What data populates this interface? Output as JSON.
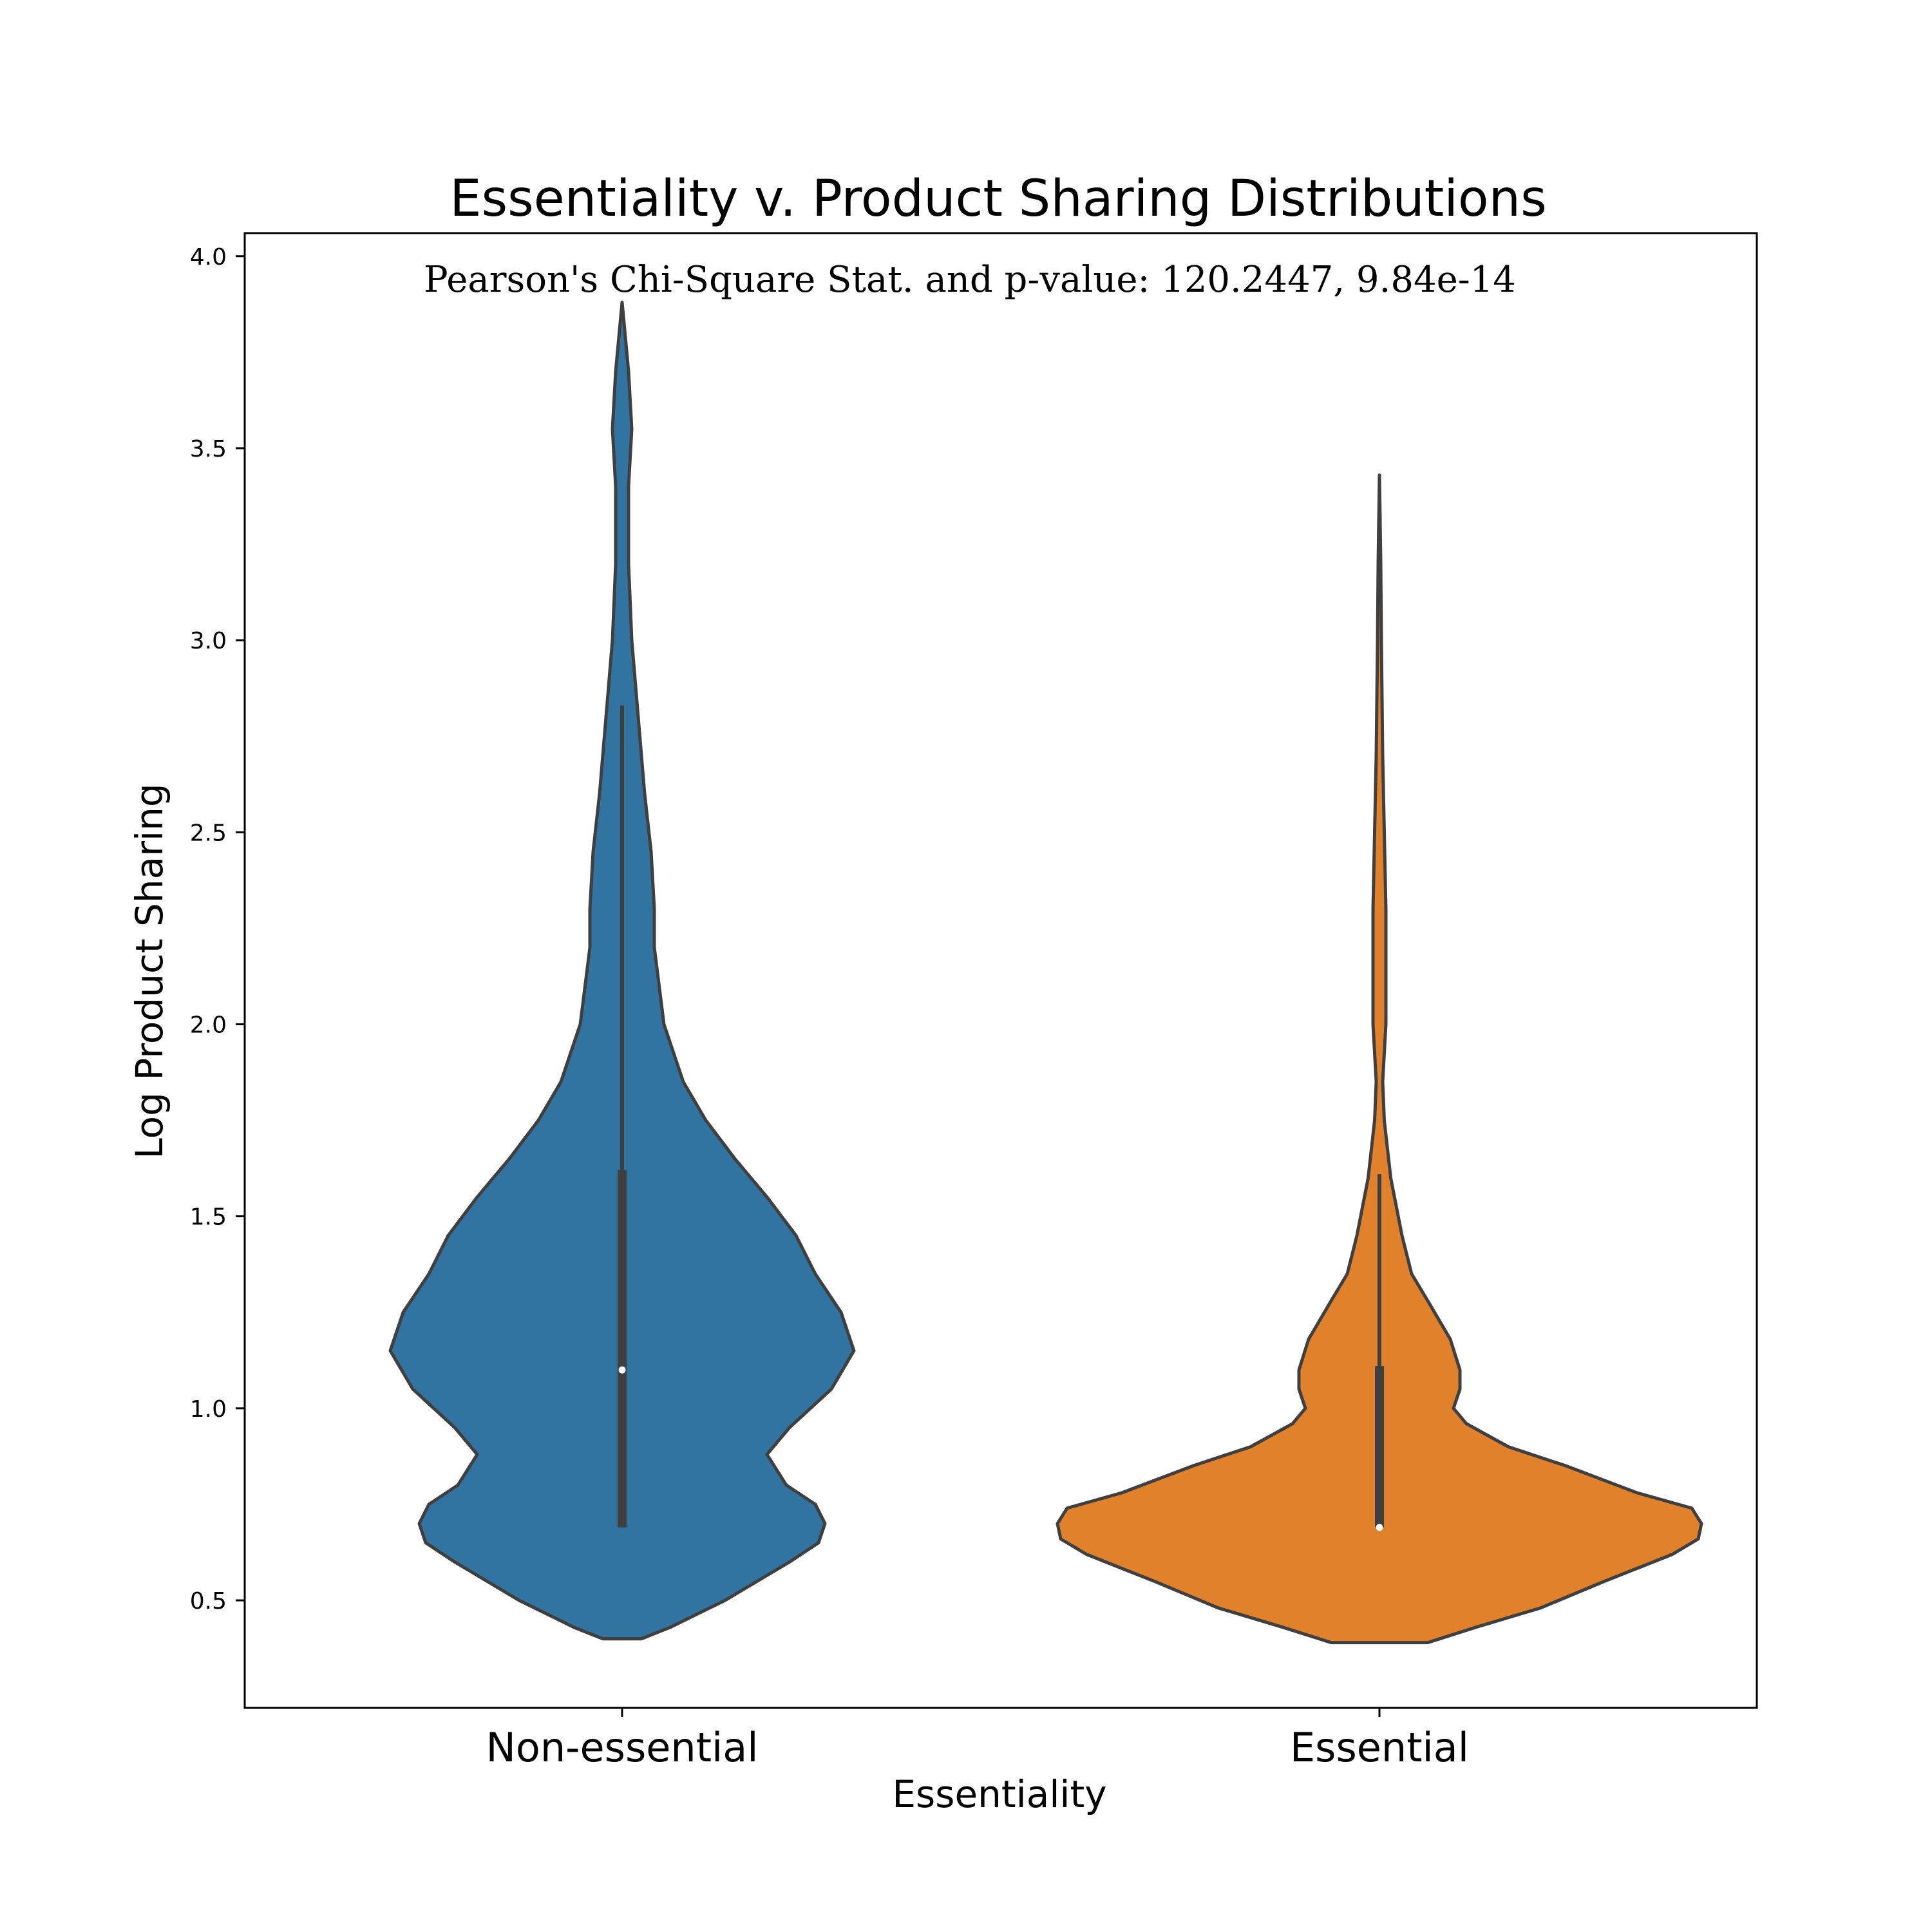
{
  "chart_data": {
    "type": "violin",
    "title": "Essentiality v. Product Sharing Distributions",
    "annotation": "Pearson's Chi-Square Stat. and p-value: 120.2447, 9.84e-14",
    "xlabel": "Essentiality",
    "ylabel": "Log Product Sharing",
    "ylim": [
      0.22,
      4.06
    ],
    "yticks": [
      "0.5",
      "1.0",
      "1.5",
      "2.0",
      "2.5",
      "3.0",
      "3.5",
      "4.0"
    ],
    "grid": false,
    "categories": [
      "Non-essential",
      "Essential"
    ],
    "series": [
      {
        "category": "Non-essential",
        "color": "#3274a1",
        "min": 0.4,
        "max": 3.88,
        "q1": 0.69,
        "median": 1.1,
        "q3": 1.62,
        "whisker_low": 0.69,
        "whisker_high": 2.83,
        "density": [
          [
            0.4,
            0.06
          ],
          [
            0.43,
            0.15
          ],
          [
            0.5,
            0.32
          ],
          [
            0.6,
            0.52
          ],
          [
            0.65,
            0.61
          ],
          [
            0.7,
            0.63
          ],
          [
            0.75,
            0.6
          ],
          [
            0.8,
            0.51
          ],
          [
            0.88,
            0.45
          ],
          [
            0.95,
            0.52
          ],
          [
            1.05,
            0.65
          ],
          [
            1.15,
            0.72
          ],
          [
            1.25,
            0.68
          ],
          [
            1.35,
            0.6
          ],
          [
            1.45,
            0.54
          ],
          [
            1.55,
            0.45
          ],
          [
            1.65,
            0.35
          ],
          [
            1.75,
            0.26
          ],
          [
            1.85,
            0.19
          ],
          [
            2.0,
            0.13
          ],
          [
            2.2,
            0.1
          ],
          [
            2.3,
            0.1
          ],
          [
            2.45,
            0.09
          ],
          [
            2.6,
            0.07
          ],
          [
            2.8,
            0.05
          ],
          [
            3.0,
            0.03
          ],
          [
            3.2,
            0.02
          ],
          [
            3.4,
            0.02
          ],
          [
            3.55,
            0.03
          ],
          [
            3.7,
            0.02
          ],
          [
            3.88,
            0.0
          ]
        ]
      },
      {
        "category": "Essential",
        "color": "#e1812c",
        "min": 0.39,
        "max": 3.43,
        "q1": 0.69,
        "median": 0.69,
        "q3": 1.11,
        "whisker_low": 0.69,
        "whisker_high": 1.61,
        "density": [
          [
            0.39,
            0.15
          ],
          [
            0.43,
            0.3
          ],
          [
            0.48,
            0.5
          ],
          [
            0.55,
            0.7
          ],
          [
            0.62,
            0.91
          ],
          [
            0.66,
            0.99
          ],
          [
            0.7,
            1.0
          ],
          [
            0.74,
            0.97
          ],
          [
            0.78,
            0.8
          ],
          [
            0.85,
            0.58
          ],
          [
            0.9,
            0.4
          ],
          [
            0.96,
            0.27
          ],
          [
            1.0,
            0.23
          ],
          [
            1.05,
            0.25
          ],
          [
            1.1,
            0.25
          ],
          [
            1.18,
            0.22
          ],
          [
            1.28,
            0.15
          ],
          [
            1.35,
            0.1
          ],
          [
            1.45,
            0.07
          ],
          [
            1.6,
            0.035
          ],
          [
            1.75,
            0.015
          ],
          [
            1.85,
            0.01
          ],
          [
            2.0,
            0.02
          ],
          [
            2.15,
            0.02
          ],
          [
            2.3,
            0.02
          ],
          [
            2.5,
            0.015
          ],
          [
            2.7,
            0.01
          ],
          [
            3.0,
            0.006
          ],
          [
            3.2,
            0.004
          ],
          [
            3.43,
            0.0
          ]
        ]
      }
    ]
  }
}
